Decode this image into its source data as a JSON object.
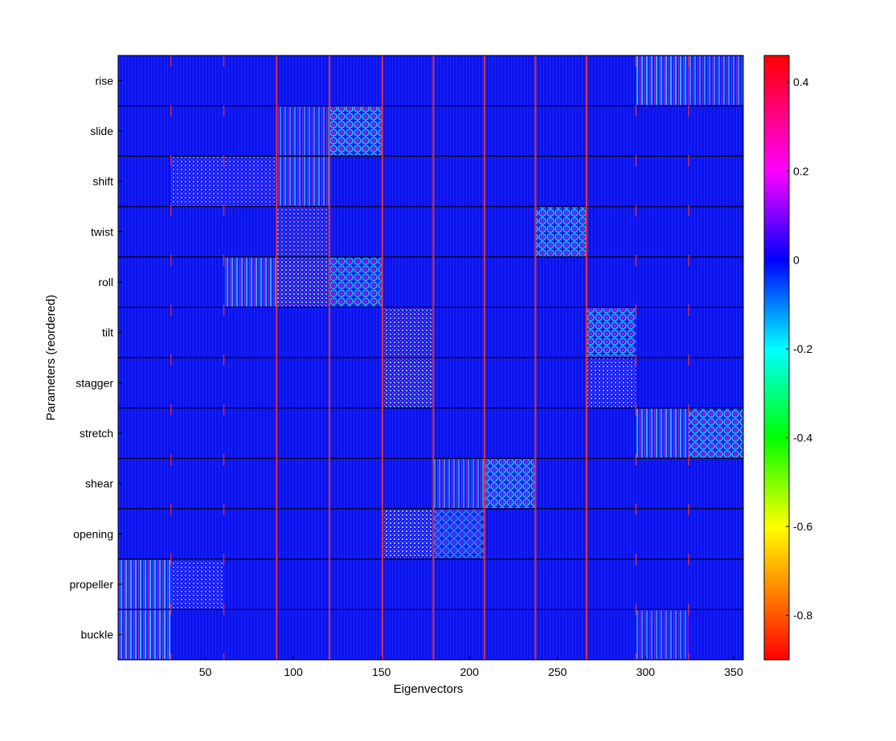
{
  "chart_data": {
    "type": "heatmap",
    "title": "",
    "xlabel": "Eigenvectors",
    "ylabel": "Parameters (reordered)",
    "xlim": [
      1,
      355
    ],
    "x_ticks": [
      50,
      100,
      150,
      200,
      250,
      300,
      350
    ],
    "parameters": [
      "rise",
      "slide",
      "shift",
      "twist",
      "roll",
      "tilt",
      "stagger",
      "stretch",
      "shear",
      "opening",
      "propeller",
      "buckle"
    ],
    "column_blocks": [
      {
        "start": 1,
        "end": 30
      },
      {
        "start": 31,
        "end": 60
      },
      {
        "start": 61,
        "end": 90
      },
      {
        "start": 91,
        "end": 120
      },
      {
        "start": 121,
        "end": 150
      },
      {
        "start": 151,
        "end": 179
      },
      {
        "start": 180,
        "end": 208
      },
      {
        "start": 209,
        "end": 237
      },
      {
        "start": 238,
        "end": 266
      },
      {
        "start": 267,
        "end": 294
      },
      {
        "start": 295,
        "end": 324
      },
      {
        "start": 325,
        "end": 355
      }
    ],
    "solid_separators": [
      91,
      121,
      151,
      180,
      209,
      238,
      267
    ],
    "dashed_separators": [
      31,
      61,
      295,
      325
    ],
    "high_intensity_cells": [
      {
        "parameter": "rise",
        "block": 10,
        "level": 0.9,
        "pattern": "stripes"
      },
      {
        "parameter": "rise",
        "block": 11,
        "level": 0.6,
        "pattern": "stripes"
      },
      {
        "parameter": "slide",
        "block": 4,
        "level": 0.95,
        "pattern": "rings"
      },
      {
        "parameter": "slide",
        "block": 3,
        "level": 0.5,
        "pattern": "stripes"
      },
      {
        "parameter": "shift",
        "block": 1,
        "level": 0.6,
        "pattern": "grid"
      },
      {
        "parameter": "shift",
        "block": 3,
        "level": 0.7,
        "pattern": "stripes"
      },
      {
        "parameter": "shift",
        "block": 2,
        "level": 0.5,
        "pattern": "grid"
      },
      {
        "parameter": "twist",
        "block": 8,
        "level": 0.95,
        "pattern": "rings"
      },
      {
        "parameter": "twist",
        "block": 3,
        "level": 0.6,
        "pattern": "grid"
      },
      {
        "parameter": "roll",
        "block": 3,
        "level": 0.9,
        "pattern": "grid"
      },
      {
        "parameter": "roll",
        "block": 2,
        "level": 0.8,
        "pattern": "stripes"
      },
      {
        "parameter": "roll",
        "block": 4,
        "level": 0.8,
        "pattern": "rings"
      },
      {
        "parameter": "tilt",
        "block": 5,
        "level": 0.7,
        "pattern": "grid"
      },
      {
        "parameter": "tilt",
        "block": 9,
        "level": 0.9,
        "pattern": "rings"
      },
      {
        "parameter": "stagger",
        "block": 5,
        "level": 0.85,
        "pattern": "grid"
      },
      {
        "parameter": "stagger",
        "block": 9,
        "level": 0.7,
        "pattern": "grid"
      },
      {
        "parameter": "stretch",
        "block": 10,
        "level": 0.8,
        "pattern": "stripes"
      },
      {
        "parameter": "stretch",
        "block": 11,
        "level": 0.95,
        "pattern": "rings"
      },
      {
        "parameter": "shear",
        "block": 7,
        "level": 0.95,
        "pattern": "rings"
      },
      {
        "parameter": "shear",
        "block": 6,
        "level": 0.6,
        "pattern": "stripes"
      },
      {
        "parameter": "opening",
        "block": 5,
        "level": 0.9,
        "pattern": "grid"
      },
      {
        "parameter": "opening",
        "block": 6,
        "level": 0.6,
        "pattern": "rings"
      },
      {
        "parameter": "propeller",
        "block": 0,
        "level": 0.9,
        "pattern": "stripes"
      },
      {
        "parameter": "propeller",
        "block": 1,
        "level": 0.6,
        "pattern": "grid"
      },
      {
        "parameter": "buckle",
        "block": 0,
        "level": 0.95,
        "pattern": "stripes"
      },
      {
        "parameter": "buckle",
        "block": 10,
        "level": 0.5,
        "pattern": "stripes"
      }
    ],
    "colorbar": {
      "min": -0.9,
      "max": 0.46,
      "ticks": [
        0.4,
        0.2,
        0,
        -0.2,
        -0.4,
        -0.6,
        -0.8
      ],
      "tick_labels": [
        "0.4",
        "0.2",
        "0",
        "-0.2",
        "-0.4",
        "-0.6",
        "-0.8"
      ],
      "colors": [
        "#ff0000",
        "#ff8000",
        "#ffff00",
        "#00ff00",
        "#00ffff",
        "#0000ff",
        "#ff00ff",
        "#ff0000"
      ],
      "color_stops": [
        -0.9,
        -0.75,
        -0.6,
        -0.4,
        -0.2,
        0.0,
        0.2,
        0.46
      ]
    },
    "background_color": "#1010f0",
    "separator_color": "#e0303a",
    "grid": false
  }
}
